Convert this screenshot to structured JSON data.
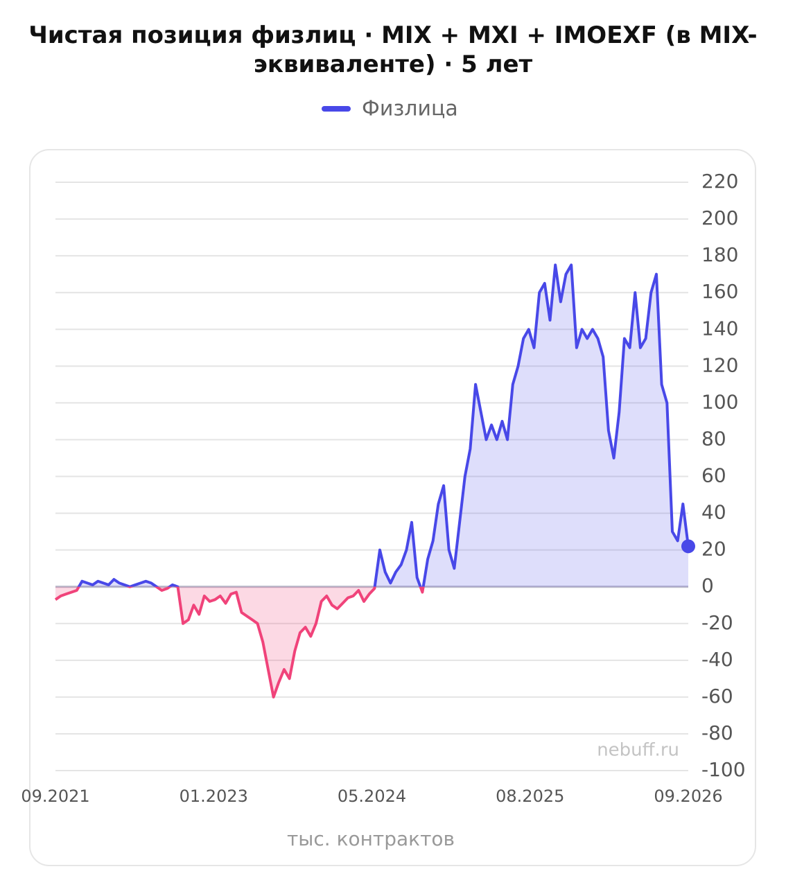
{
  "chart_data": {
    "type": "line",
    "title": "Чистая позиция физлиц · MIX + MXI + IMOEXF (в MIX-эквиваленте) · 5 лет",
    "series": [
      {
        "name": "Физлица",
        "color": "#4848e8",
        "negative_color": "#f0437a",
        "values": [
          -7,
          -5,
          -4,
          -3,
          -2,
          3,
          2,
          1,
          3,
          2,
          1,
          4,
          2,
          1,
          0,
          1,
          2,
          3,
          2,
          0,
          -2,
          -1,
          1,
          0,
          -20,
          -18,
          -10,
          -15,
          -5,
          -8,
          -7,
          -5,
          -9,
          -4,
          -3,
          -14,
          -16,
          -18,
          -20,
          -30,
          -45,
          -60,
          -52,
          -45,
          -50,
          -35,
          -25,
          -22,
          -27,
          -20,
          -8,
          -5,
          -10,
          -12,
          -9,
          -6,
          -5,
          -2,
          -8,
          -4,
          -1,
          20,
          8,
          2,
          8,
          12,
          20,
          35,
          5,
          -3,
          15,
          25,
          45,
          55,
          20,
          10,
          35,
          60,
          75,
          110,
          95,
          80,
          88,
          80,
          90,
          80,
          110,
          120,
          135,
          140,
          130,
          160,
          165,
          145,
          175,
          155,
          170,
          175,
          130,
          140,
          135,
          140,
          135,
          125,
          85,
          70,
          95,
          135,
          130,
          160,
          130,
          135,
          160,
          170,
          110,
          100,
          30,
          25,
          45,
          22
        ]
      }
    ],
    "xlim": [
      0,
      119
    ],
    "xticks": [
      {
        "value": 0,
        "label": "09.2021"
      },
      {
        "value": 29.75,
        "label": "01.2023"
      },
      {
        "value": 59.5,
        "label": "05.2024"
      },
      {
        "value": 89.25,
        "label": "08.2025"
      },
      {
        "value": 119,
        "label": "09.2026"
      }
    ],
    "ylim": [
      -100,
      220
    ],
    "yticks": [
      220,
      200,
      180,
      160,
      140,
      120,
      100,
      80,
      60,
      40,
      20,
      0,
      -20,
      -40,
      -60,
      -80,
      -100
    ],
    "grid": true,
    "y_axis_label": "тыс. контрактов",
    "watermark": "nebuff.ru",
    "legend": "top"
  }
}
